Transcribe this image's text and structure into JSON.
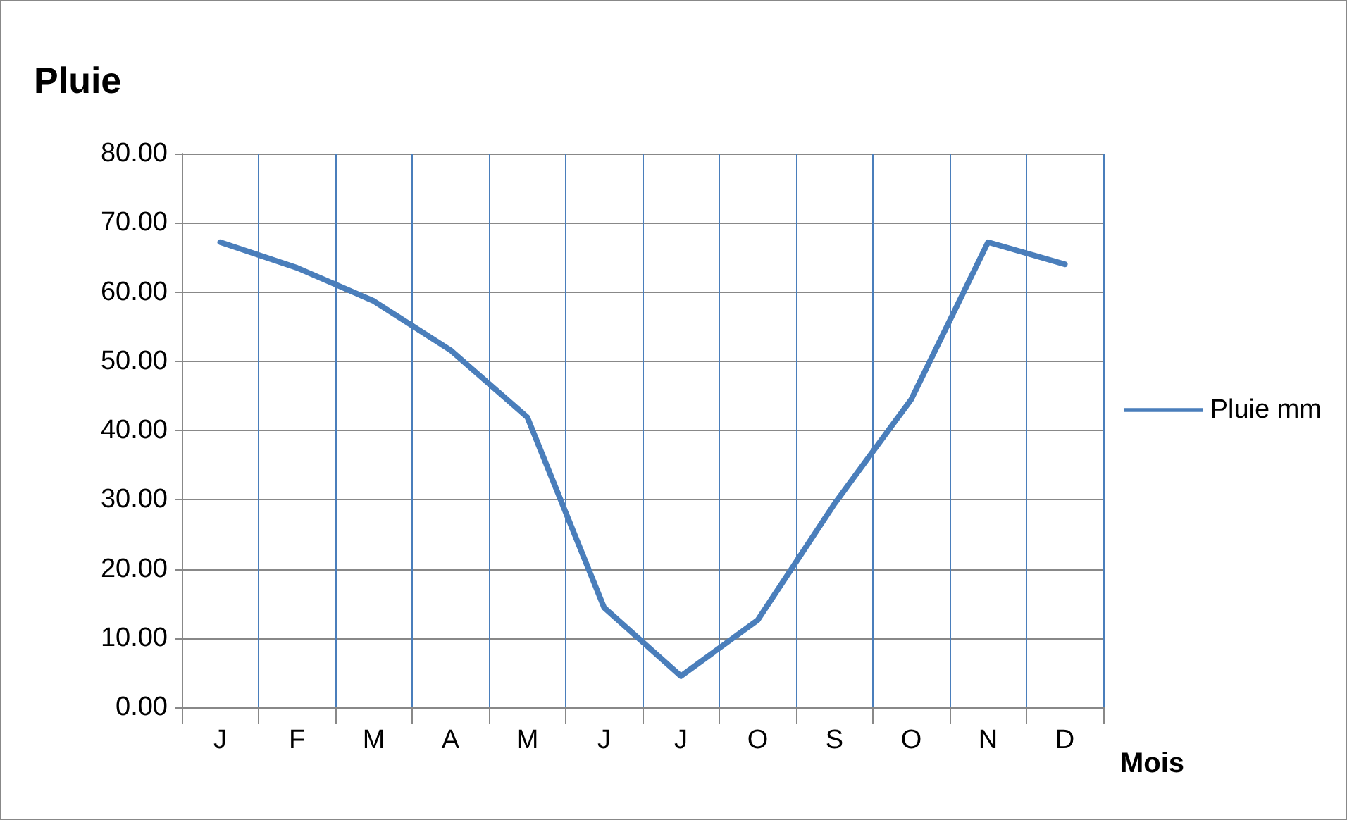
{
  "chart_data": {
    "type": "line",
    "title": "Pluie",
    "xlabel": "Mois",
    "categories": [
      "J",
      "F",
      "M",
      "A",
      "M",
      "J",
      "J",
      "O",
      "S",
      "O",
      "N",
      "D"
    ],
    "series": [
      {
        "name": "Pluie mm",
        "color": "#4a7ebb",
        "values": [
          67.2,
          63.5,
          58.7,
          51.6,
          41.9,
          14.4,
          4.5,
          12.6,
          29.4,
          44.5,
          67.2,
          64.0
        ]
      }
    ],
    "ylim": [
      0,
      80
    ],
    "yticks": [
      {
        "value": 0,
        "label": "0.00"
      },
      {
        "value": 10,
        "label": "10.00"
      },
      {
        "value": 20,
        "label": "20.00"
      },
      {
        "value": 30,
        "label": "30.00"
      },
      {
        "value": 40,
        "label": "40.00"
      },
      {
        "value": 50,
        "label": "50.00"
      },
      {
        "value": 60,
        "label": "60.00"
      },
      {
        "value": 70,
        "label": "70.00"
      },
      {
        "value": 80,
        "label": "80.00"
      }
    ],
    "grid": true,
    "legend": "right",
    "marker": "none",
    "line_style": "solid"
  }
}
